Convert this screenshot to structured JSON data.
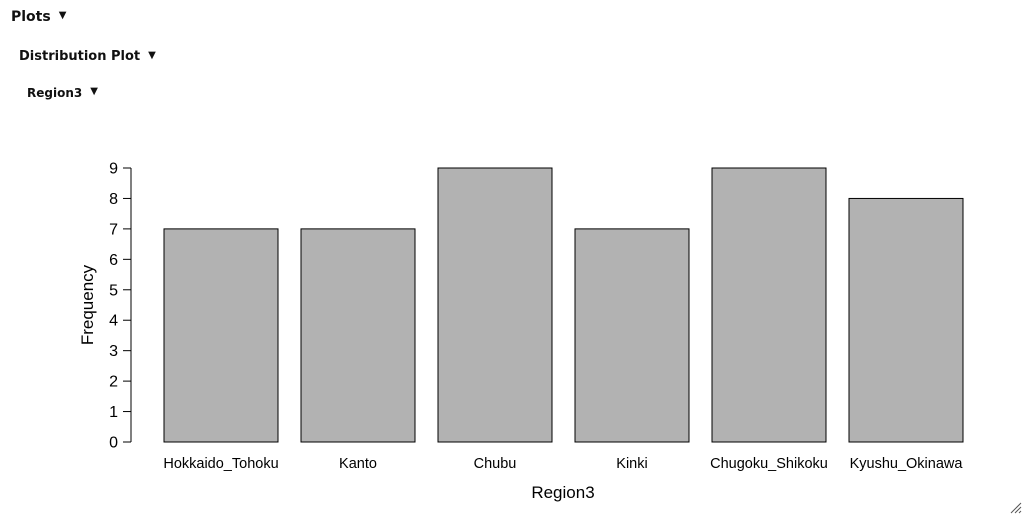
{
  "headers": {
    "plots": "Plots",
    "distribution_plot": "Distribution Plot",
    "variable": "Region3"
  },
  "icons": {
    "collapse": "caret-down-icon",
    "resize": "resize-grip-icon"
  },
  "chart_data": {
    "type": "bar",
    "categories": [
      "Hokkaido_Tohoku",
      "Kanto",
      "Chubu",
      "Kinki",
      "Chugoku_Shikoku",
      "Kyushu_Okinawa"
    ],
    "values": [
      7,
      7,
      9,
      7,
      9,
      8
    ],
    "xlabel": "Region3",
    "ylabel": "Frequency",
    "ylim": [
      0,
      9
    ],
    "yticks": [
      0,
      1,
      2,
      3,
      4,
      5,
      6,
      7,
      8,
      9
    ],
    "bar_color": "#b2b2b2",
    "bar_stroke": "#000000",
    "grid": false
  }
}
